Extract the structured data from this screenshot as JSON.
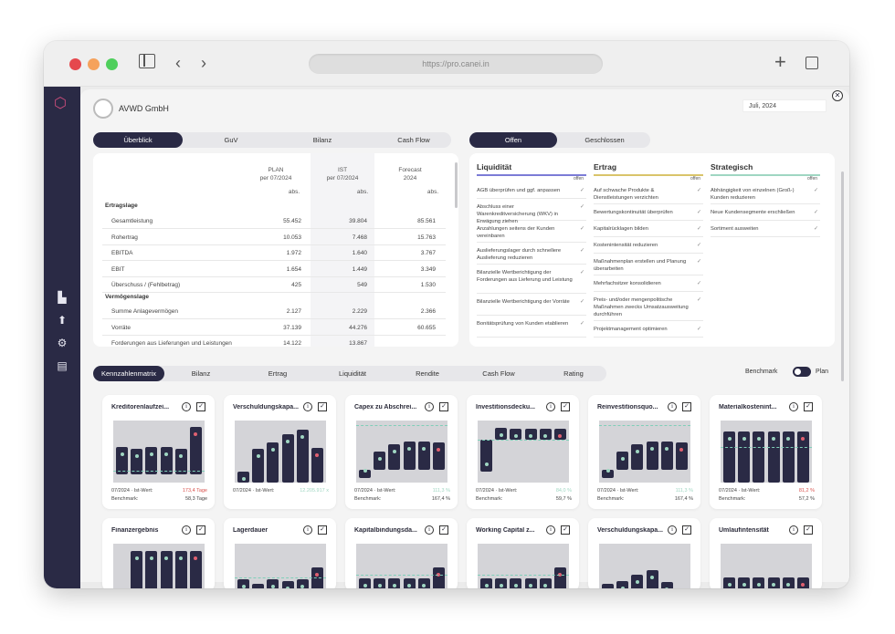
{
  "browser": {
    "url": "https://pro.canei.in"
  },
  "header": {
    "company": "AVWD GmbH",
    "date": "Juli, 2024"
  },
  "main_tabs": [
    {
      "label": "Überblick"
    },
    {
      "label": "GuV"
    },
    {
      "label": "Bilanz"
    },
    {
      "label": "Cash Flow"
    }
  ],
  "status_tabs": [
    {
      "label": "Offen"
    },
    {
      "label": "Geschlossen"
    }
  ],
  "table": {
    "col_plan": "PLAN",
    "col_plan_sub": "per 07/2024",
    "col_ist": "IST",
    "col_ist_sub": "per 07/2024",
    "col_fc": "Forecast",
    "col_fc_sub": "2024",
    "abs": "abs.",
    "section1": "Ertragslage",
    "rows1": [
      {
        "label": "Gesamtleistung",
        "plan": "55.452",
        "ist": "39.804",
        "fc": "85.561"
      },
      {
        "label": "Rohertrag",
        "plan": "10.053",
        "ist": "7.468",
        "fc": "15.763"
      },
      {
        "label": "EBITDA",
        "plan": "1.972",
        "ist": "1.640",
        "fc": "3.767"
      },
      {
        "label": "EBIT",
        "plan": "1.654",
        "ist": "1.449",
        "fc": "3.349"
      },
      {
        "label": "Überschuss / (Fehlbetrag)",
        "plan": "425",
        "ist": "549",
        "fc": "1.530"
      }
    ],
    "section2": "Vermögenslage",
    "rows2": [
      {
        "label": "Summe Anlagevermögen",
        "plan": "2.127",
        "ist": "2.229",
        "fc": "2.366"
      },
      {
        "label": "Vorräte",
        "plan": "37.139",
        "ist": "44.276",
        "fc": "60.655"
      },
      {
        "label": "Forderungen aus Lieferungen und Leistungen",
        "plan": "14.122",
        "ist": "13.867",
        "fc": ""
      }
    ]
  },
  "actions": {
    "offen": "offen",
    "columns": [
      {
        "title": "Liquidität",
        "color": "#7c7cd6",
        "items": [
          "AGB überprüfen und ggf. anpassen",
          "Abschluss einer Warenkreditversicherung (WKV) in Erwägung ziehen",
          "Anzahlungen seitens der Kunden vereinbaren",
          "Auslieferungslager durch schnellere Auslieferung reduzieren",
          "Bilanzielle Wertberichtigung der Forderungen aus Lieferung und Leistung",
          "Bilanzielle Wertberichtigung der Vorräte",
          "Bonitätsprüfung von Kunden etablieren"
        ]
      },
      {
        "title": "Ertrag",
        "color": "#d9c46a",
        "items": [
          "Auf schwache Produkte & Dienstleistungen verzichten",
          "Bewertungskontinuität überprüfen",
          "Kapitalrücklagen bilden",
          "Kostenintensität reduzieren",
          "Maßnahmenplan erstellen und Planung überarbeiten",
          "Mehrfachsitzer konsolidieren",
          "Preis- und/oder mengenpolitische Maßnahmen zwecks Umsatzausweitung durchführen",
          "Projektmanagement optimieren"
        ]
      },
      {
        "title": "Strategisch",
        "color": "#9fd6c2",
        "items": [
          "Abhängigkeit von einzelnen (Groß-) Kunden reduzieren",
          "Neue Kundensegmente erschließen",
          "Sortiment ausweiten"
        ]
      }
    ]
  },
  "kpi_tabs": [
    {
      "label": "Kennzahlenmatrix"
    },
    {
      "label": "Bilanz"
    },
    {
      "label": "Ertrag"
    },
    {
      "label": "Liquidität"
    },
    {
      "label": "Rendite"
    },
    {
      "label": "Cash Flow"
    },
    {
      "label": "Rating"
    }
  ],
  "benchmark": {
    "label": "Benchmark",
    "plan": "Plan"
  },
  "icons": {
    "info": "i",
    "check": "✓",
    "close": "✕"
  },
  "chart_data": [
    {
      "type": "bar",
      "title": "Kreditorenlaufzei...",
      "ist_label": "07/2024 · Ist-Wert:",
      "ist_value": "173,4 Tage",
      "ist_color": "#d9534f",
      "bench_label": "Benchmark:",
      "bench_value": "58,3 Tage",
      "values": [
        0.36,
        0.33,
        0.36,
        0.36,
        0.33,
        0.62
      ],
      "ylim": [
        -0.1,
        0.7
      ],
      "line": 0.05
    },
    {
      "type": "bar",
      "title": "Verschuldungskapa...",
      "ist_label": "07/2024 · Ist-Wert:",
      "ist_value": "12.205.917 x",
      "ist_color": "#9fd6c2",
      "values": [
        0.18,
        0.55,
        0.64,
        0.78,
        0.86,
        0.56
      ],
      "ylim": [
        0,
        1
      ]
    },
    {
      "type": "bar",
      "title": "Capex zu Abschrei...",
      "ist_label": "07/2024 · Ist-Wert:",
      "ist_value": "111,3 %",
      "ist_color": "#9fd6c2",
      "bench_label": "Benchmark:",
      "bench_value": "167,4 %",
      "values": [
        -0.12,
        0.3,
        0.42,
        0.46,
        0.46,
        0.45
      ],
      "ylim": [
        -0.2,
        0.8
      ],
      "line": 0.72
    },
    {
      "type": "bar",
      "title": "Investitionsdecku...",
      "ist_label": "07/2024 · Ist-Wert:",
      "ist_value": "84,0 %",
      "ist_color": "#9fd6c2",
      "bench_label": "Benchmark:",
      "bench_value": "59,7 %",
      "values": [
        -0.6,
        0.22,
        0.2,
        0.2,
        0.2,
        0.2
      ],
      "ylim": [
        -0.8,
        0.35
      ],
      "line": 0.0
    },
    {
      "type": "bar",
      "title": "Reinvestitionsquo...",
      "ist_label": "07/2024 · Ist-Wert:",
      "ist_value": "111,3 %",
      "ist_color": "#9fd6c2",
      "bench_label": "Benchmark:",
      "bench_value": "167,4 %",
      "values": [
        -0.12,
        0.3,
        0.42,
        0.46,
        0.46,
        0.45
      ],
      "ylim": [
        -0.2,
        0.8
      ],
      "line": 0.72
    },
    {
      "type": "bar",
      "title": "Materialkostenint...",
      "ist_label": "07/2024 · Ist-Wert:",
      "ist_value": "81,2 %",
      "ist_color": "#d9534f",
      "bench_label": "Benchmark:",
      "bench_value": "57,2 %",
      "values": [
        0.82,
        0.82,
        0.82,
        0.82,
        0.82,
        0.82
      ],
      "ylim": [
        0,
        1
      ],
      "line": 0.58
    },
    {
      "type": "bar",
      "title": "Finanzergebnis",
      "values": [
        -0.2,
        0.86,
        0.86,
        0.86,
        0.86,
        0.86
      ],
      "ylim": [
        -0.25,
        1
      ],
      "line": 0.0
    },
    {
      "type": "bar",
      "title": "Lagerdauer",
      "values": [
        0.42,
        0.36,
        0.42,
        0.4,
        0.42,
        0.62
      ],
      "ylim": [
        0,
        1
      ],
      "line": 0.45
    },
    {
      "type": "bar",
      "title": "Kapitalbindungsda...",
      "values": [
        0.44,
        0.44,
        0.44,
        0.44,
        0.44,
        0.62
      ],
      "ylim": [
        0,
        1
      ],
      "line": 0.5
    },
    {
      "type": "bar",
      "title": "Working Capital z...",
      "values": [
        0.44,
        0.44,
        0.44,
        0.44,
        0.44,
        0.62
      ],
      "ylim": [
        0,
        1
      ],
      "line": 0.5
    },
    {
      "type": "bar",
      "title": "Verschuldungskapa...",
      "values": [
        0.36,
        0.4,
        0.5,
        0.58,
        0.38,
        0.0
      ],
      "ylim": [
        0,
        1
      ]
    },
    {
      "type": "bar",
      "title": "Umlaufintensität",
      "values": [
        0.46,
        0.46,
        0.46,
        0.46,
        0.46,
        0.46
      ],
      "ylim": [
        0,
        1
      ]
    }
  ]
}
